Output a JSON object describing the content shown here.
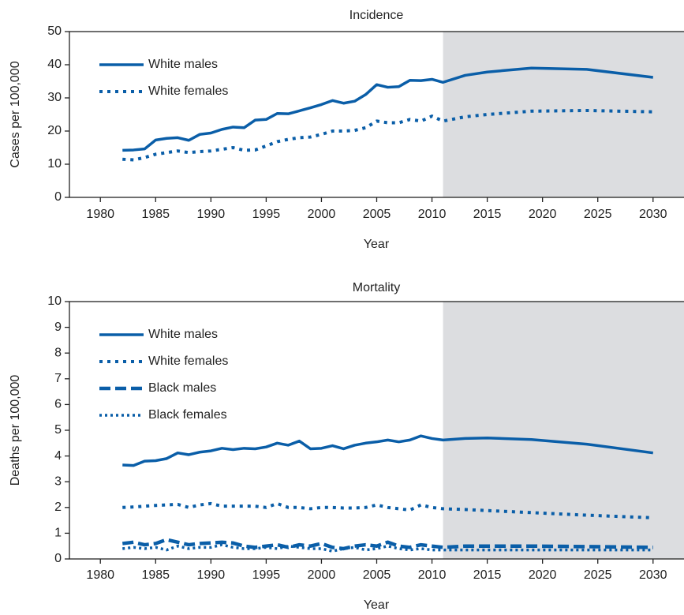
{
  "chart_data": [
    {
      "type": "line",
      "title": "Incidence",
      "x_label": "Year",
      "y_label": "Cases per 100,000",
      "x": [
        1982,
        1983,
        1984,
        1985,
        1986,
        1987,
        1988,
        1989,
        1990,
        1991,
        1992,
        1993,
        1994,
        1995,
        1996,
        1997,
        1998,
        1999,
        2000,
        2001,
        2002,
        2003,
        2004,
        2005,
        2006,
        2007,
        2008,
        2009,
        2010,
        2011,
        2013,
        2015,
        2019,
        2024,
        2030
      ],
      "series": [
        {
          "name": "White males",
          "color": "#0a5ea8",
          "dash": "solid",
          "values": [
            14.2,
            14.3,
            14.6,
            17.3,
            17.8,
            18.0,
            17.2,
            19.0,
            19.4,
            20.5,
            21.2,
            21.0,
            23.3,
            23.5,
            25.3,
            25.2,
            26.1,
            27.0,
            28.0,
            29.2,
            28.4,
            29.0,
            31.0,
            34.0,
            33.2,
            33.4,
            35.3,
            35.2,
            35.6,
            34.7,
            36.8,
            37.8,
            39.0,
            38.6,
            36.2
          ]
        },
        {
          "name": "White females",
          "color": "#0a5ea8",
          "dash": "square-dot",
          "values": [
            11.5,
            11.3,
            12.0,
            13.0,
            13.5,
            14.0,
            13.5,
            13.8,
            14.0,
            14.5,
            15.0,
            14.2,
            14.3,
            15.5,
            16.8,
            17.5,
            18.0,
            18.2,
            19.0,
            20.0,
            20.0,
            20.2,
            21.0,
            23.0,
            22.5,
            22.5,
            23.5,
            23.0,
            24.5,
            23.0,
            24.3,
            25.0,
            26.0,
            26.2,
            25.8
          ]
        }
      ],
      "xlim": [
        1977.2,
        2032.8
      ],
      "xticks": [
        1980,
        1985,
        1990,
        1995,
        2000,
        2005,
        2010,
        2015,
        2020,
        2025,
        2030
      ],
      "ylim": [
        0,
        50
      ],
      "yticks": [
        0,
        10,
        20,
        30,
        40,
        50
      ],
      "shaded_x": [
        2011,
        2032.8
      ],
      "legend": "upper left"
    },
    {
      "type": "line",
      "title": "Mortality",
      "x_label": "Year",
      "y_label": "Deaths per 100,000",
      "x": [
        1982,
        1983,
        1984,
        1985,
        1986,
        1987,
        1988,
        1989,
        1990,
        1991,
        1992,
        1993,
        1994,
        1995,
        1996,
        1997,
        1998,
        1999,
        2000,
        2001,
        2002,
        2003,
        2004,
        2005,
        2006,
        2007,
        2008,
        2009,
        2010,
        2011,
        2013,
        2015,
        2019,
        2024,
        2030
      ],
      "series": [
        {
          "name": "White males",
          "color": "#0a5ea8",
          "dash": "solid",
          "values": [
            3.65,
            3.63,
            3.8,
            3.82,
            3.9,
            4.12,
            4.05,
            4.15,
            4.2,
            4.3,
            4.25,
            4.3,
            4.28,
            4.35,
            4.5,
            4.42,
            4.58,
            4.28,
            4.3,
            4.4,
            4.28,
            4.42,
            4.5,
            4.55,
            4.62,
            4.55,
            4.62,
            4.78,
            4.68,
            4.62,
            4.68,
            4.7,
            4.64,
            4.46,
            4.12
          ]
        },
        {
          "name": "White females",
          "color": "#0a5ea8",
          "dash": "square-dot",
          "values": [
            2.0,
            2.02,
            2.05,
            2.08,
            2.1,
            2.12,
            2.0,
            2.1,
            2.15,
            2.05,
            2.05,
            2.05,
            2.05,
            2.0,
            2.15,
            2.0,
            2.0,
            1.95,
            2.0,
            2.0,
            1.98,
            1.98,
            2.0,
            2.1,
            2.0,
            1.95,
            1.9,
            2.1,
            2.0,
            1.95,
            1.92,
            1.88,
            1.8,
            1.7,
            1.6
          ]
        },
        {
          "name": "Black males",
          "color": "#0a5ea8",
          "dash": "long-dash",
          "values": [
            0.6,
            0.65,
            0.55,
            0.6,
            0.75,
            0.65,
            0.55,
            0.6,
            0.62,
            0.65,
            0.62,
            0.5,
            0.45,
            0.5,
            0.55,
            0.45,
            0.55,
            0.5,
            0.6,
            0.45,
            0.4,
            0.5,
            0.55,
            0.5,
            0.65,
            0.5,
            0.45,
            0.55,
            0.5,
            0.45,
            0.5,
            0.5,
            0.5,
            0.48,
            0.45
          ]
        },
        {
          "name": "Black females",
          "color": "#0a5ea8",
          "dash": "dot",
          "values": [
            0.4,
            0.45,
            0.4,
            0.45,
            0.35,
            0.5,
            0.4,
            0.45,
            0.45,
            0.55,
            0.45,
            0.4,
            0.4,
            0.45,
            0.4,
            0.5,
            0.45,
            0.4,
            0.4,
            0.3,
            0.4,
            0.45,
            0.35,
            0.4,
            0.5,
            0.4,
            0.35,
            0.4,
            0.35,
            0.35,
            0.35,
            0.35,
            0.35,
            0.35,
            0.35
          ]
        }
      ],
      "xlim": [
        1977.2,
        2032.8
      ],
      "xticks": [
        1980,
        1985,
        1990,
        1995,
        2000,
        2005,
        2010,
        2015,
        2020,
        2025,
        2030
      ],
      "ylim": [
        0,
        10
      ],
      "yticks": [
        0,
        1,
        2,
        3,
        4,
        5,
        6,
        7,
        8,
        9,
        10
      ],
      "shaded_x": [
        2011,
        2032.8
      ],
      "legend": "upper left"
    }
  ]
}
